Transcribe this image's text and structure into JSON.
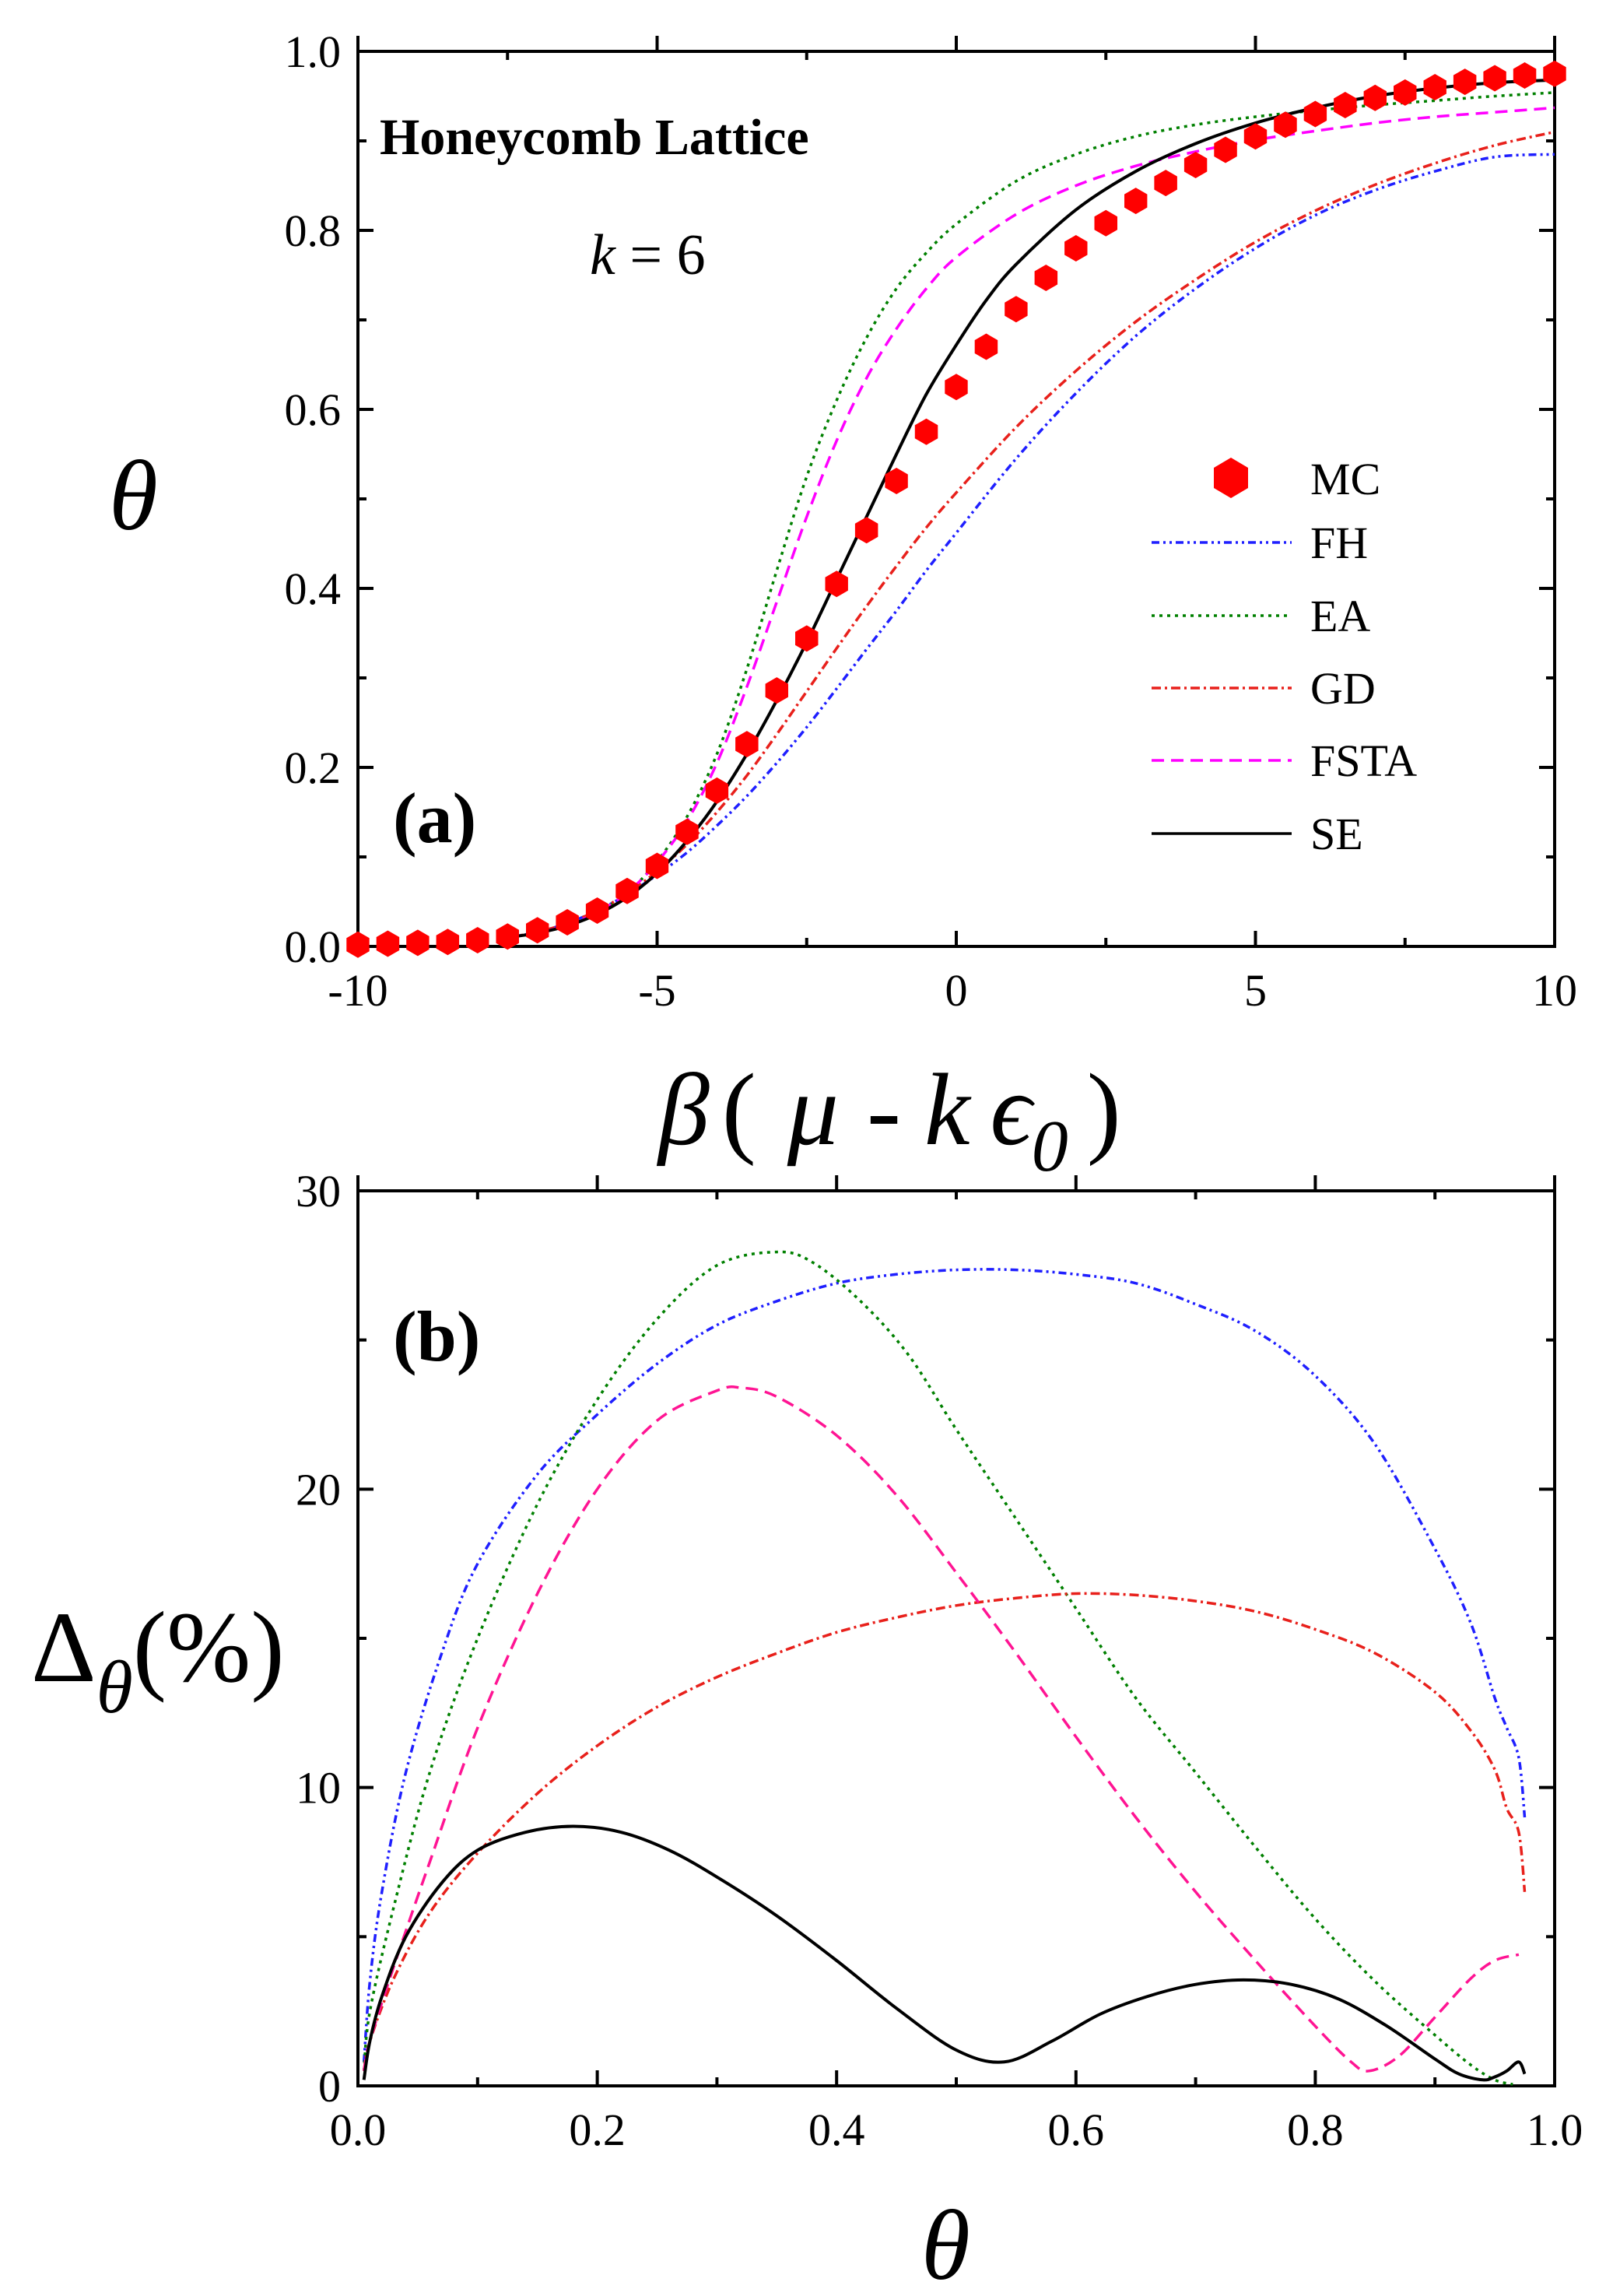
{
  "chart_data": [
    {
      "id": "a",
      "type": "line",
      "panel_label": "(a)",
      "title": "Honeycomb Lattice",
      "annotation": "k = 6",
      "annotation_var": "k",
      "annotation_eq": " = 6",
      "xlabel": "β ( μ - k ϵ0 )",
      "xlabel_parts": {
        "beta": "β",
        "open": "(",
        "mu": "μ",
        "minus": "-",
        "k": "k",
        "eps": "ϵ",
        "sub": "0",
        "close": ")"
      },
      "ylabel": "θ",
      "xlim": [
        -10,
        10
      ],
      "ylim": [
        0,
        1
      ],
      "xticks": [
        -10,
        -5,
        0,
        5,
        10
      ],
      "xtick_labels": [
        "-10",
        "-5",
        "0",
        "5",
        "10"
      ],
      "yticks": [
        0,
        0.2,
        0.4,
        0.6,
        0.8,
        1.0
      ],
      "ytick_labels": [
        "0.0",
        "0.2",
        "0.4",
        "0.6",
        "0.8",
        "1.0"
      ],
      "legend_position": "center-right",
      "mc": {
        "name": "MC",
        "color": "#ff0000",
        "x": [
          -10,
          -9.5,
          -9,
          -8.5,
          -8,
          -7.5,
          -7,
          -6.5,
          -6,
          -5.5,
          -5,
          -4.5,
          -4,
          -3.5,
          -3,
          -2.5,
          -2,
          -1.5,
          -1,
          -0.5,
          0,
          0.5,
          1,
          1.5,
          2,
          2.5,
          3,
          3.5,
          4,
          4.5,
          5,
          5.5,
          6,
          6.5,
          7,
          7.5,
          8,
          8.5,
          9,
          9.5,
          10
        ],
        "y": [
          0.002,
          0.003,
          0.004,
          0.005,
          0.007,
          0.011,
          0.018,
          0.027,
          0.04,
          0.062,
          0.09,
          0.128,
          0.174,
          0.226,
          0.286,
          0.344,
          0.405,
          0.465,
          0.52,
          0.575,
          0.625,
          0.67,
          0.712,
          0.747,
          0.78,
          0.808,
          0.833,
          0.853,
          0.873,
          0.89,
          0.905,
          0.918,
          0.93,
          0.94,
          0.948,
          0.954,
          0.96,
          0.966,
          0.97,
          0.973,
          0.975
        ]
      },
      "series": [
        {
          "name": "FH",
          "color": "#1f1fff",
          "dash": "10,5,3,5,3,5",
          "x": [
            -7.5,
            -7,
            -6.5,
            -6,
            -5.5,
            -5,
            -4.5,
            -4,
            -3.5,
            -3,
            -2.5,
            -2,
            -1.5,
            -1,
            -0.5,
            0,
            1,
            2,
            3,
            4,
            5,
            6,
            7,
            8,
            9,
            10
          ],
          "y": [
            0.01,
            0.016,
            0.026,
            0.04,
            0.058,
            0.08,
            0.105,
            0.135,
            0.168,
            0.205,
            0.245,
            0.288,
            0.332,
            0.375,
            0.42,
            0.462,
            0.545,
            0.618,
            0.682,
            0.735,
            0.78,
            0.817,
            0.845,
            0.866,
            0.882,
            0.885
          ]
        },
        {
          "name": "EA",
          "color": "#008000",
          "dash": "4,6",
          "x": [
            -7.5,
            -7,
            -6.5,
            -6,
            -5.5,
            -5,
            -4.5,
            -4,
            -3.5,
            -3,
            -2.5,
            -2,
            -1.5,
            -1,
            -0.5,
            0,
            1,
            2,
            3,
            4,
            5,
            6,
            7,
            8,
            9,
            10
          ],
          "y": [
            0.01,
            0.015,
            0.024,
            0.038,
            0.06,
            0.095,
            0.145,
            0.215,
            0.31,
            0.42,
            0.525,
            0.61,
            0.68,
            0.735,
            0.775,
            0.807,
            0.855,
            0.885,
            0.905,
            0.918,
            0.927,
            0.934,
            0.94,
            0.945,
            0.95,
            0.954
          ]
        },
        {
          "name": "GD",
          "color": "#e8201b",
          "dash": "12,5,3,5",
          "x": [
            -7.5,
            -7,
            -6.5,
            -6,
            -5.5,
            -5,
            -4.5,
            -4,
            -3.5,
            -3,
            -2.5,
            -2,
            -1.5,
            -1,
            -0.5,
            0,
            1,
            2,
            3,
            4,
            5,
            6,
            7,
            8,
            9,
            10
          ],
          "y": [
            0.01,
            0.016,
            0.026,
            0.04,
            0.059,
            0.084,
            0.114,
            0.15,
            0.191,
            0.237,
            0.285,
            0.333,
            0.38,
            0.425,
            0.468,
            0.507,
            0.58,
            0.643,
            0.698,
            0.745,
            0.787,
            0.822,
            0.851,
            0.875,
            0.895,
            0.91
          ]
        },
        {
          "name": "FSTA",
          "color": "#ff00ff",
          "dash": "16,9",
          "x": [
            -7.5,
            -7,
            -6.5,
            -6,
            -5.5,
            -5,
            -4.5,
            -4,
            -3.5,
            -3,
            -2.5,
            -2,
            -1.5,
            -1,
            -0.5,
            0,
            1,
            2,
            3,
            4,
            5,
            6,
            7,
            8,
            9,
            10
          ],
          "y": [
            0.01,
            0.015,
            0.024,
            0.038,
            0.06,
            0.094,
            0.14,
            0.205,
            0.29,
            0.385,
            0.48,
            0.565,
            0.635,
            0.69,
            0.735,
            0.77,
            0.818,
            0.85,
            0.872,
            0.888,
            0.901,
            0.911,
            0.92,
            0.927,
            0.932,
            0.937
          ]
        },
        {
          "name": "SE",
          "color": "#000000",
          "dash": "",
          "x": [
            -7.5,
            -7,
            -6.5,
            -6,
            -5.5,
            -5,
            -4.5,
            -4,
            -3.5,
            -3,
            -2.5,
            -2,
            -1.5,
            -1,
            -0.5,
            0,
            0.5,
            1,
            2,
            3,
            4,
            5,
            6,
            7,
            8,
            9,
            10
          ],
          "y": [
            0.01,
            0.015,
            0.023,
            0.036,
            0.055,
            0.082,
            0.118,
            0.162,
            0.215,
            0.275,
            0.34,
            0.41,
            0.48,
            0.55,
            0.617,
            0.672,
            0.722,
            0.762,
            0.823,
            0.866,
            0.897,
            0.92,
            0.937,
            0.95,
            0.959,
            0.965,
            0.968
          ]
        }
      ]
    },
    {
      "id": "b",
      "type": "line",
      "panel_label": "(b)",
      "xlabel": "θ",
      "ylabel": "Δθ(%)",
      "ylabel_parts": {
        "delta": "Δ",
        "sub": "θ",
        "rest": "(%)"
      },
      "xlim": [
        0,
        1
      ],
      "ylim": [
        0,
        30
      ],
      "xticks": [
        0,
        0.2,
        0.4,
        0.6,
        0.8,
        1.0
      ],
      "xtick_labels": [
        "0.0",
        "0.2",
        "0.4",
        "0.6",
        "0.8",
        "1.0"
      ],
      "yticks": [
        0,
        10,
        20,
        30
      ],
      "ytick_labels": [
        "0",
        "10",
        "20",
        "30"
      ],
      "series": [
        {
          "name": "FH",
          "color": "#1f1fff",
          "dash": "10,5,3,5,3,5",
          "x": [
            0.005,
            0.01,
            0.02,
            0.04,
            0.07,
            0.1,
            0.15,
            0.2,
            0.25,
            0.3,
            0.35,
            0.4,
            0.45,
            0.5,
            0.55,
            0.6,
            0.65,
            0.7,
            0.75,
            0.8,
            0.85,
            0.9,
            0.93,
            0.95,
            0.96,
            0.97,
            0.975
          ],
          "y": [
            0.8,
            3.5,
            6.5,
            10.5,
            14.5,
            17.5,
            20.5,
            22.5,
            24.2,
            25.5,
            26.3,
            26.9,
            27.2,
            27.35,
            27.35,
            27.2,
            26.9,
            26.2,
            25.3,
            23.8,
            21.5,
            18.0,
            15.5,
            13.0,
            12.0,
            11.0,
            9.0
          ]
        },
        {
          "name": "EA",
          "color": "#008000",
          "dash": "4,6",
          "x": [
            0.005,
            0.01,
            0.03,
            0.06,
            0.1,
            0.15,
            0.2,
            0.25,
            0.3,
            0.35,
            0.38,
            0.42,
            0.46,
            0.5,
            0.55,
            0.6,
            0.65,
            0.7,
            0.75,
            0.8,
            0.85,
            0.9,
            0.93,
            0.95,
            0.965
          ],
          "y": [
            0.5,
            2.5,
            6.0,
            10.5,
            15.0,
            19.5,
            23.0,
            25.7,
            27.5,
            27.95,
            27.6,
            26.3,
            24.5,
            22.0,
            19.0,
            16.0,
            13.0,
            10.5,
            8.0,
            5.6,
            3.5,
            1.7,
            0.7,
            0.2,
            0.05
          ]
        },
        {
          "name": "GD",
          "color": "#e8201b",
          "dash": "12,5,3,5",
          "x": [
            0.005,
            0.01,
            0.03,
            0.06,
            0.1,
            0.15,
            0.2,
            0.25,
            0.3,
            0.35,
            0.4,
            0.45,
            0.5,
            0.55,
            0.6,
            0.65,
            0.7,
            0.75,
            0.8,
            0.85,
            0.9,
            0.93,
            0.95,
            0.96,
            0.97,
            0.975
          ],
          "y": [
            0.5,
            1.5,
            3.6,
            5.8,
            7.8,
            9.8,
            11.4,
            12.7,
            13.7,
            14.5,
            15.2,
            15.7,
            16.1,
            16.35,
            16.5,
            16.45,
            16.25,
            15.9,
            15.3,
            14.5,
            13.2,
            11.9,
            10.6,
            9.3,
            8.5,
            6.5
          ]
        },
        {
          "name": "FSTA",
          "color": "#ff1493",
          "dash": "16,9",
          "x": [
            0.005,
            0.01,
            0.03,
            0.06,
            0.1,
            0.15,
            0.2,
            0.25,
            0.3,
            0.32,
            0.35,
            0.4,
            0.45,
            0.5,
            0.55,
            0.6,
            0.65,
            0.7,
            0.75,
            0.8,
            0.83,
            0.845,
            0.87,
            0.9,
            0.93,
            0.95,
            0.97
          ],
          "y": [
            0.5,
            1.5,
            4.0,
            7.5,
            12.0,
            16.5,
            20.0,
            22.3,
            23.3,
            23.4,
            23.1,
            21.8,
            19.8,
            17.2,
            14.5,
            11.7,
            9.0,
            6.5,
            4.2,
            2.0,
            0.8,
            0.5,
            1.0,
            2.3,
            3.6,
            4.2,
            4.4
          ]
        },
        {
          "name": "SE",
          "color": "#000000",
          "dash": "",
          "x": [
            0.005,
            0.01,
            0.02,
            0.04,
            0.07,
            0.1,
            0.14,
            0.18,
            0.22,
            0.26,
            0.3,
            0.35,
            0.4,
            0.45,
            0.5,
            0.54,
            0.58,
            0.62,
            0.66,
            0.7,
            0.74,
            0.78,
            0.82,
            0.86,
            0.9,
            0.92,
            0.94,
            0.95,
            0.96,
            0.97,
            0.975
          ],
          "y": [
            0.2,
            1.5,
            3.0,
            5.0,
            6.8,
            7.9,
            8.5,
            8.7,
            8.5,
            7.9,
            7.0,
            5.7,
            4.2,
            2.6,
            1.2,
            0.8,
            1.5,
            2.4,
            3.0,
            3.4,
            3.55,
            3.4,
            2.9,
            2.0,
            0.9,
            0.4,
            0.2,
            0.3,
            0.5,
            0.8,
            0.4
          ]
        }
      ]
    }
  ]
}
